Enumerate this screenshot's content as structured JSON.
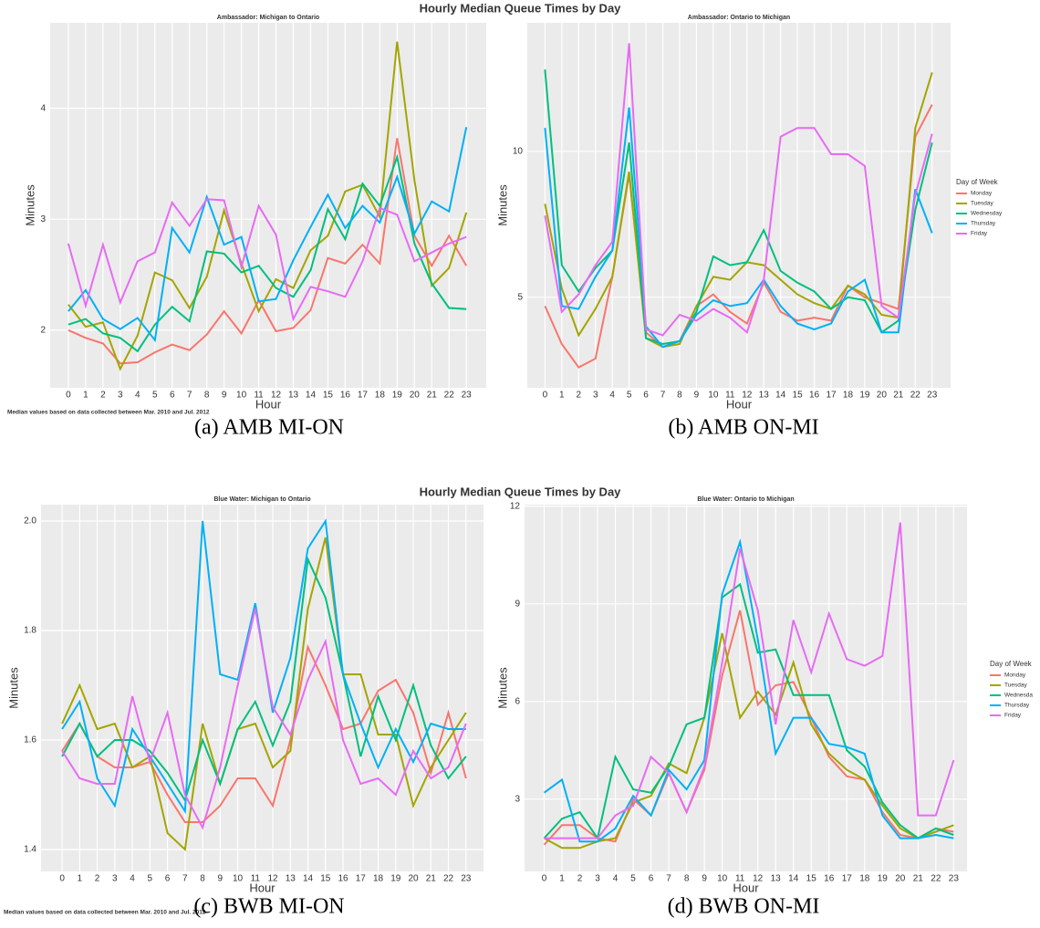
{
  "figure_titles": [
    "Hourly Median Queue Times by Day",
    "Hourly Median Queue Times by Day"
  ],
  "footnotes": [
    "Median values based on data collected between Mar. 2010 and Jul. 2012",
    "Median values based on data collected between Mar. 2010 and Jul. 2012"
  ],
  "chart_data": [
    {
      "type": "line",
      "title": "Ambassador: Michigan to Ontario",
      "caption": "(a) AMB MI-ON",
      "xlabel": "Hour",
      "ylabel": "Minutes",
      "x": [
        0,
        1,
        2,
        3,
        4,
        5,
        6,
        7,
        8,
        9,
        10,
        11,
        12,
        13,
        14,
        15,
        16,
        17,
        18,
        19,
        20,
        21,
        22,
        23
      ],
      "xlim": [
        -1.05,
        24.15
      ],
      "xticks": [
        0,
        1,
        2,
        3,
        4,
        5,
        6,
        7,
        8,
        9,
        10,
        11,
        12,
        13,
        14,
        15,
        16,
        17,
        18,
        19,
        20,
        21,
        22,
        23
      ],
      "ylim": [
        1.48,
        4.77
      ],
      "yticks": [
        2,
        3,
        4
      ],
      "grid": true,
      "series": [
        {
          "name": "Monday",
          "color": "#F8766D",
          "values": [
            2.0,
            1.93,
            1.88,
            1.7,
            1.71,
            1.8,
            1.87,
            1.82,
            1.96,
            2.17,
            1.97,
            2.27,
            1.99,
            2.02,
            2.18,
            2.65,
            2.6,
            2.77,
            2.6,
            3.73,
            2.85,
            2.58,
            2.85,
            2.58
          ]
        },
        {
          "name": "Tuesday",
          "color": "#A3A500",
          "values": [
            2.23,
            2.03,
            2.07,
            1.65,
            1.95,
            2.52,
            2.45,
            2.2,
            2.48,
            3.08,
            2.6,
            2.17,
            2.46,
            2.38,
            2.72,
            2.85,
            3.25,
            3.31,
            3.02,
            4.6,
            3.35,
            2.4,
            2.56,
            3.06
          ]
        },
        {
          "name": "Wednesday",
          "color": "#00BF7D",
          "values": [
            2.05,
            2.1,
            1.97,
            1.93,
            1.81,
            2.05,
            2.21,
            2.08,
            2.71,
            2.69,
            2.52,
            2.58,
            2.38,
            2.3,
            2.54,
            3.09,
            2.82,
            3.32,
            3.12,
            3.56,
            2.78,
            2.42,
            2.2,
            2.19
          ]
        },
        {
          "name": "Thursday",
          "color": "#00B0F6",
          "values": [
            2.17,
            2.36,
            2.1,
            2.01,
            2.11,
            1.91,
            2.92,
            2.7,
            3.2,
            2.77,
            2.84,
            2.26,
            2.28,
            2.63,
            2.93,
            3.22,
            2.92,
            3.12,
            2.97,
            3.38,
            2.87,
            3.16,
            3.07,
            3.83
          ]
        },
        {
          "name": "Friday",
          "color": "#E76BF3",
          "values": [
            2.78,
            2.22,
            2.77,
            2.25,
            2.62,
            2.7,
            3.15,
            2.94,
            3.18,
            3.17,
            2.57,
            3.12,
            2.86,
            2.1,
            2.39,
            2.35,
            2.3,
            2.62,
            3.1,
            3.04,
            2.62,
            2.7,
            2.78,
            2.84
          ]
        }
      ]
    },
    {
      "type": "line",
      "title": "Ambassador: Ontario to Michigan",
      "caption": "(b) AMB ON-MI",
      "xlabel": "Hour",
      "ylabel": "Minutes",
      "legend_title": "Day of Week",
      "legend": "right",
      "x": [
        0,
        1,
        2,
        3,
        4,
        5,
        6,
        7,
        8,
        9,
        10,
        11,
        12,
        13,
        14,
        15,
        16,
        17,
        18,
        19,
        20,
        21,
        22,
        23
      ],
      "xlim": [
        -1.05,
        24.1
      ],
      "xticks": [
        0,
        1,
        2,
        3,
        4,
        5,
        6,
        7,
        8,
        9,
        10,
        11,
        12,
        13,
        14,
        15,
        16,
        17,
        18,
        19,
        20,
        21,
        22,
        23
      ],
      "ylim": [
        1.9,
        14.4
      ],
      "yticks": [
        5,
        10
      ],
      "grid": true,
      "series": [
        {
          "name": "Monday",
          "color": "#F8766D",
          "values": [
            4.7,
            3.4,
            2.6,
            2.9,
            5.7,
            9.2,
            3.8,
            3.3,
            3.5,
            4.7,
            5.1,
            4.5,
            4.1,
            5.5,
            4.5,
            4.2,
            4.3,
            4.2,
            5.4,
            5.0,
            4.8,
            4.6,
            10.5,
            11.6
          ]
        },
        {
          "name": "Tuesday",
          "color": "#A3A500",
          "values": [
            8.2,
            5.3,
            3.7,
            4.6,
            5.7,
            9.3,
            3.6,
            3.3,
            3.4,
            4.7,
            5.7,
            5.6,
            6.2,
            6.1,
            5.6,
            5.1,
            4.8,
            4.6,
            5.4,
            5.1,
            4.4,
            4.3,
            10.8,
            12.7
          ]
        },
        {
          "name": "Wednesday",
          "color": "#00BF7D",
          "values": [
            12.8,
            6.1,
            5.2,
            6.0,
            6.6,
            10.3,
            3.6,
            3.4,
            3.5,
            4.5,
            6.4,
            6.1,
            6.2,
            7.3,
            5.9,
            5.5,
            5.2,
            4.6,
            5.0,
            4.9,
            3.8,
            4.2,
            8.0,
            10.3
          ]
        },
        {
          "name": "Thursday",
          "color": "#00B0F6",
          "values": [
            10.8,
            4.7,
            4.6,
            5.7,
            6.6,
            11.5,
            4.0,
            3.3,
            3.5,
            4.4,
            4.9,
            4.7,
            4.8,
            5.6,
            4.7,
            4.1,
            3.9,
            4.1,
            5.2,
            5.6,
            3.8,
            3.8,
            8.7,
            7.2
          ]
        },
        {
          "name": "Friday",
          "color": "#E76BF3",
          "values": [
            7.8,
            4.5,
            5.1,
            6.1,
            6.9,
            13.7,
            3.9,
            3.7,
            4.4,
            4.2,
            4.6,
            4.3,
            3.8,
            5.6,
            10.5,
            10.8,
            10.8,
            9.9,
            9.9,
            9.5,
            4.7,
            4.3,
            8.5,
            10.6
          ]
        }
      ]
    },
    {
      "type": "line",
      "title": "Blue Water: Michigan to Ontario",
      "caption": "(c) BWB MI-ON",
      "xlabel": "Hour",
      "ylabel": "Minutes",
      "x": [
        0,
        1,
        2,
        3,
        4,
        5,
        6,
        7,
        8,
        9,
        10,
        11,
        12,
        13,
        14,
        15,
        16,
        17,
        18,
        19,
        20,
        21,
        22,
        23
      ],
      "xlim": [
        -1.2,
        24.0
      ],
      "xticks": [
        0,
        1,
        2,
        3,
        4,
        5,
        6,
        7,
        8,
        9,
        10,
        11,
        12,
        13,
        14,
        15,
        16,
        17,
        18,
        19,
        20,
        21,
        22,
        23
      ],
      "ylim": [
        1.36,
        2.03
      ],
      "yticks": [
        {
          "value": 1.4,
          "label": "1.4"
        },
        {
          "value": 1.6,
          "label": "1.6"
        },
        {
          "value": 1.8,
          "label": "1.8"
        },
        {
          "value": 2.0,
          "label": "2.0"
        }
      ],
      "grid": true,
      "series": [
        {
          "name": "Monday",
          "color": "#F8766D",
          "values": [
            1.58,
            1.63,
            1.57,
            1.55,
            1.55,
            1.56,
            1.5,
            1.45,
            1.45,
            1.48,
            1.53,
            1.53,
            1.48,
            1.6,
            1.77,
            1.7,
            1.62,
            1.63,
            1.69,
            1.71,
            1.65,
            1.54,
            1.65,
            1.53
          ]
        },
        {
          "name": "Tuesday",
          "color": "#A3A500",
          "values": [
            1.63,
            1.7,
            1.62,
            1.63,
            1.55,
            1.57,
            1.43,
            1.4,
            1.63,
            1.52,
            1.62,
            1.63,
            1.55,
            1.58,
            1.84,
            1.97,
            1.72,
            1.72,
            1.61,
            1.61,
            1.48,
            1.55,
            1.6,
            1.65
          ]
        },
        {
          "name": "Wednesday",
          "color": "#00BF7D",
          "values": [
            1.57,
            1.63,
            1.57,
            1.6,
            1.6,
            1.58,
            1.54,
            1.49,
            1.6,
            1.52,
            1.62,
            1.67,
            1.59,
            1.67,
            1.93,
            1.86,
            1.72,
            1.57,
            1.68,
            1.6,
            1.7,
            1.59,
            1.53,
            1.57
          ]
        },
        {
          "name": "Thursday",
          "color": "#00B0F6",
          "values": [
            1.62,
            1.67,
            1.53,
            1.48,
            1.62,
            1.57,
            1.52,
            1.47,
            2.0,
            1.72,
            1.71,
            1.85,
            1.65,
            1.75,
            1.95,
            2.0,
            1.72,
            1.63,
            1.55,
            1.62,
            1.56,
            1.63,
            1.62,
            1.62
          ]
        },
        {
          "name": "Friday",
          "color": "#E76BF3",
          "values": [
            1.58,
            1.53,
            1.52,
            1.52,
            1.68,
            1.56,
            1.65,
            1.5,
            1.44,
            1.55,
            1.7,
            1.84,
            1.66,
            1.61,
            1.71,
            1.78,
            1.6,
            1.52,
            1.53,
            1.5,
            1.58,
            1.53,
            1.55,
            1.63
          ]
        }
      ]
    },
    {
      "type": "line",
      "title": "Blue Water: Ontario to Michigan",
      "caption": "(d) BWB ON-MI",
      "xlabel": "Hour",
      "ylabel": "Minutes",
      "legend_title": "Day of Week",
      "legend": "right",
      "x": [
        0,
        1,
        2,
        3,
        4,
        5,
        6,
        7,
        8,
        9,
        10,
        11,
        12,
        13,
        14,
        15,
        16,
        17,
        18,
        19,
        20,
        21,
        22,
        23
      ],
      "xlim": [
        -1.1,
        23.75
      ],
      "xticks": [
        0,
        1,
        2,
        3,
        4,
        5,
        6,
        7,
        8,
        9,
        10,
        11,
        12,
        13,
        14,
        15,
        16,
        17,
        18,
        19,
        20,
        21,
        22,
        23
      ],
      "ylim": [
        0.78,
        12.05
      ],
      "yticks": [
        3,
        6,
        9,
        12
      ],
      "grid": true,
      "series": [
        {
          "name": "Monday",
          "color": "#F8766D",
          "values": [
            1.6,
            2.2,
            2.2,
            1.8,
            1.7,
            3.0,
            2.5,
            3.8,
            2.6,
            3.9,
            6.8,
            8.8,
            5.9,
            6.5,
            6.6,
            5.5,
            4.3,
            3.7,
            3.6,
            2.6,
            1.9,
            1.8,
            2.1,
            2.0
          ]
        },
        {
          "name": "Tuesday",
          "color": "#A3A500",
          "values": [
            1.8,
            1.5,
            1.5,
            1.7,
            1.8,
            2.9,
            3.1,
            4.1,
            3.8,
            5.5,
            8.1,
            5.5,
            6.3,
            5.6,
            7.2,
            5.3,
            4.4,
            3.9,
            3.6,
            2.8,
            2.1,
            1.8,
            2.0,
            2.2
          ]
        },
        {
          "name": "Wednesda",
          "color": "#00BF7D",
          "values": [
            1.8,
            2.4,
            2.6,
            1.8,
            4.3,
            3.3,
            3.2,
            4.0,
            5.3,
            5.5,
            9.2,
            9.6,
            7.5,
            7.6,
            6.2,
            6.2,
            6.2,
            4.5,
            4.0,
            2.9,
            2.2,
            1.8,
            2.1,
            1.9
          ]
        },
        {
          "name": "Thursday",
          "color": "#00B0F6",
          "values": [
            3.2,
            3.6,
            1.7,
            1.7,
            2.1,
            3.1,
            2.5,
            3.9,
            3.3,
            4.2,
            9.3,
            10.9,
            7.9,
            4.4,
            5.5,
            5.5,
            4.7,
            4.6,
            4.4,
            2.5,
            1.8,
            1.8,
            1.9,
            1.8
          ]
        },
        {
          "name": "Friday",
          "color": "#E76BF3",
          "values": [
            1.8,
            1.8,
            1.8,
            1.8,
            2.5,
            2.8,
            4.3,
            3.8,
            2.6,
            4.0,
            7.2,
            10.7,
            8.8,
            5.3,
            8.5,
            6.9,
            8.7,
            7.3,
            7.1,
            7.4,
            11.5,
            2.5,
            2.5,
            4.2
          ]
        }
      ]
    }
  ]
}
